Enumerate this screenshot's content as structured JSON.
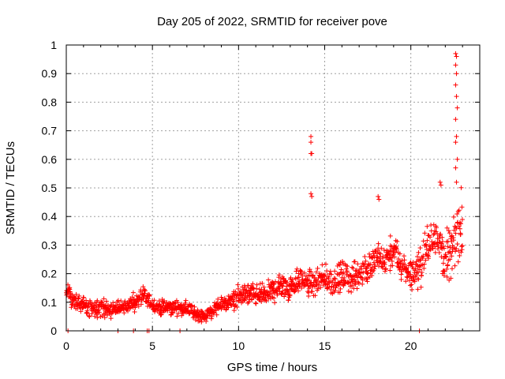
{
  "chart_data": {
    "type": "scatter",
    "title": "Day 205 of 2022, SRMTID for receiver pove",
    "xlabel": "GPS time / hours",
    "ylabel": "SRMTID / TECUs",
    "xlim": [
      0,
      24
    ],
    "ylim": [
      0,
      1
    ],
    "x_ticks": [
      0,
      5,
      10,
      15,
      20
    ],
    "x_tick_labels": [
      "0",
      "5",
      "10",
      "15",
      "20"
    ],
    "y_ticks": [
      0,
      0.1,
      0.2,
      0.3,
      0.4,
      0.5,
      0.6,
      0.7,
      0.8,
      0.9,
      1
    ],
    "y_tick_labels": [
      "0",
      "0.1",
      "0.2",
      "0.3",
      "0.4",
      "0.5",
      "0.6",
      "0.7",
      "0.8",
      "0.9",
      "1"
    ],
    "grid": true,
    "marker": "+",
    "marker_color": "#ff0000",
    "series": [
      {
        "name": "SRMTID",
        "trend": [
          [
            0.0,
            0.14
          ],
          [
            0.5,
            0.1
          ],
          [
            1.0,
            0.09
          ],
          [
            1.5,
            0.08
          ],
          [
            2.0,
            0.08
          ],
          [
            2.5,
            0.07
          ],
          [
            3.0,
            0.08
          ],
          [
            3.5,
            0.09
          ],
          [
            4.0,
            0.1
          ],
          [
            4.5,
            0.12
          ],
          [
            5.0,
            0.09
          ],
          [
            5.5,
            0.08
          ],
          [
            6.0,
            0.08
          ],
          [
            6.5,
            0.08
          ],
          [
            7.0,
            0.08
          ],
          [
            7.5,
            0.06
          ],
          [
            8.0,
            0.05
          ],
          [
            8.5,
            0.07
          ],
          [
            9.0,
            0.09
          ],
          [
            9.5,
            0.1
          ],
          [
            10.0,
            0.12
          ],
          [
            10.5,
            0.13
          ],
          [
            11.0,
            0.12
          ],
          [
            11.5,
            0.13
          ],
          [
            12.0,
            0.14
          ],
          [
            12.5,
            0.16
          ],
          [
            13.0,
            0.15
          ],
          [
            13.5,
            0.18
          ],
          [
            14.0,
            0.17
          ],
          [
            14.5,
            0.16
          ],
          [
            15.0,
            0.18
          ],
          [
            15.5,
            0.17
          ],
          [
            16.0,
            0.19
          ],
          [
            16.5,
            0.18
          ],
          [
            17.0,
            0.2
          ],
          [
            17.5,
            0.22
          ],
          [
            18.0,
            0.25
          ],
          [
            18.5,
            0.24
          ],
          [
            19.0,
            0.28
          ],
          [
            19.5,
            0.22
          ],
          [
            20.0,
            0.2
          ],
          [
            20.5,
            0.22
          ],
          [
            21.0,
            0.3
          ],
          [
            21.5,
            0.35
          ],
          [
            22.0,
            0.25
          ],
          [
            22.5,
            0.3
          ],
          [
            23.0,
            0.4
          ]
        ],
        "spread": [
          [
            0.0,
            0.05
          ],
          [
            4.0,
            0.04
          ],
          [
            8.0,
            0.03
          ],
          [
            10.0,
            0.05
          ],
          [
            12.0,
            0.06
          ],
          [
            16.0,
            0.07
          ],
          [
            18.0,
            0.08
          ],
          [
            20.0,
            0.08
          ],
          [
            22.0,
            0.12
          ],
          [
            23.0,
            0.15
          ]
        ],
        "spikes": [
          {
            "x": 14.2,
            "y": 0.68
          },
          {
            "x": 14.2,
            "y": 0.66
          },
          {
            "x": 14.25,
            "y": 0.62
          },
          {
            "x": 14.2,
            "y": 0.62
          },
          {
            "x": 14.2,
            "y": 0.48
          },
          {
            "x": 14.25,
            "y": 0.47
          },
          {
            "x": 22.6,
            "y": 0.97
          },
          {
            "x": 22.65,
            "y": 0.96
          },
          {
            "x": 22.6,
            "y": 0.93
          },
          {
            "x": 22.65,
            "y": 0.9
          },
          {
            "x": 22.6,
            "y": 0.86
          },
          {
            "x": 22.65,
            "y": 0.82
          },
          {
            "x": 22.7,
            "y": 0.78
          },
          {
            "x": 22.6,
            "y": 0.74
          },
          {
            "x": 22.65,
            "y": 0.68
          },
          {
            "x": 22.6,
            "y": 0.66
          },
          {
            "x": 22.7,
            "y": 0.6
          },
          {
            "x": 22.6,
            "y": 0.57
          },
          {
            "x": 22.65,
            "y": 0.52
          },
          {
            "x": 21.7,
            "y": 0.52
          },
          {
            "x": 21.75,
            "y": 0.51
          },
          {
            "x": 18.1,
            "y": 0.47
          },
          {
            "x": 18.15,
            "y": 0.46
          }
        ],
        "zero_markers": [
          0.1,
          3.0,
          3.9,
          4.7,
          4.8,
          6.6,
          20.5
        ]
      }
    ]
  }
}
